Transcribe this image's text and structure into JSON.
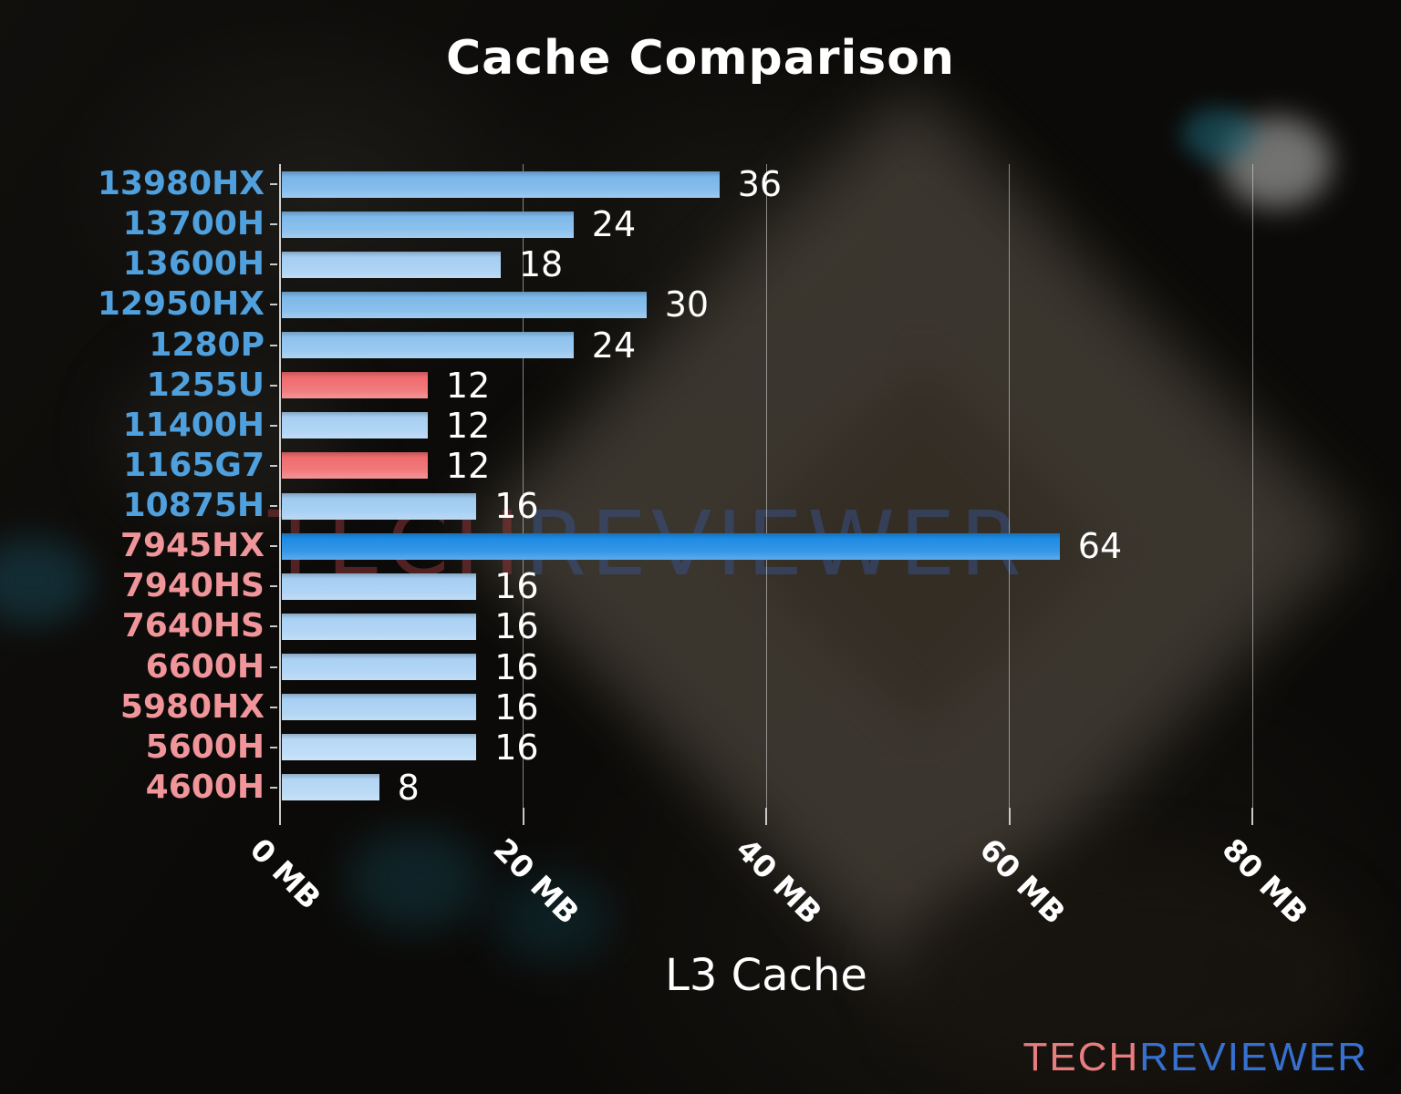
{
  "title": "Cache Comparison",
  "watermark": {
    "tech": "TECH",
    "reviewer": "REVIEWER"
  },
  "logo": {
    "tech": "TECH",
    "reviewer": "REVIEWER"
  },
  "colors": {
    "background": "#0b0a08",
    "title": "#ffffff",
    "grid": "rgba(228,228,228,0.55)",
    "axis_spine": "rgba(240,240,240,0.85)",
    "value_label": "#ffffff",
    "tick_label": "#ffffff",
    "intel_label": "#4fa0dd",
    "amd_label": "#f0959a",
    "highlight_bar": "#1f8ce4",
    "salmon_bar": "#ef6c6e",
    "light_blue_bar": "#a6cff3",
    "watermark_tech": "rgba(138,52,56,0.55)",
    "watermark_reviewer": "rgba(56,82,140,0.50)",
    "logo_tech": "#e87d80",
    "logo_reviewer": "#3671d0"
  },
  "chart_data": {
    "type": "bar",
    "orientation": "horizontal",
    "title": "Cache Comparison",
    "xlabel": "L3 Cache",
    "xlim": [
      0,
      80
    ],
    "grid": true,
    "legend": false,
    "xticks": [
      {
        "value": 0,
        "label": "0 MB"
      },
      {
        "value": 20,
        "label": "20 MB"
      },
      {
        "value": 40,
        "label": "40 MB"
      },
      {
        "value": 60,
        "label": "60 MB"
      },
      {
        "value": 80,
        "label": "80 MB"
      }
    ],
    "rows": [
      {
        "category": "13980HX",
        "value": 36,
        "bar_color": "#79b6ea",
        "label_color": "#4fa0dd"
      },
      {
        "category": "13700H",
        "value": 24,
        "bar_color": "#7fbaeb",
        "label_color": "#4fa0dd"
      },
      {
        "category": "13600H",
        "value": 18,
        "bar_color": "#a5cef2",
        "label_color": "#4fa0dd"
      },
      {
        "category": "12950HX",
        "value": 30,
        "bar_color": "#7db9ea",
        "label_color": "#4fa0dd"
      },
      {
        "category": "1280P",
        "value": 24,
        "bar_color": "#8ec3ee",
        "label_color": "#4fa0dd"
      },
      {
        "category": "1255U",
        "value": 12,
        "bar_color": "#ef6c6e",
        "label_color": "#4fa0dd"
      },
      {
        "category": "11400H",
        "value": 12,
        "bar_color": "#a8d0f3",
        "label_color": "#4fa0dd"
      },
      {
        "category": "1165G7",
        "value": 12,
        "bar_color": "#ef6c6e",
        "label_color": "#4fa0dd"
      },
      {
        "category": "10875H",
        "value": 16,
        "bar_color": "#a0cbf1",
        "label_color": "#4fa0dd"
      },
      {
        "category": "7945HX",
        "value": 64,
        "bar_color": "#1f8ce4",
        "label_color": "#f0959a"
      },
      {
        "category": "7940HS",
        "value": 16,
        "bar_color": "#a6cff3",
        "label_color": "#f0959a"
      },
      {
        "category": "7640HS",
        "value": 16,
        "bar_color": "#aad1f4",
        "label_color": "#f0959a"
      },
      {
        "category": "6600H",
        "value": 16,
        "bar_color": "#aad1f4",
        "label_color": "#f0959a"
      },
      {
        "category": "5980HX",
        "value": 16,
        "bar_color": "#a8d0f3",
        "label_color": "#f0959a"
      },
      {
        "category": "5600H",
        "value": 16,
        "bar_color": "#b7d9f6",
        "label_color": "#f0959a"
      },
      {
        "category": "4600H",
        "value": 8,
        "bar_color": "#b3d6f5",
        "label_color": "#f0959a"
      }
    ]
  }
}
